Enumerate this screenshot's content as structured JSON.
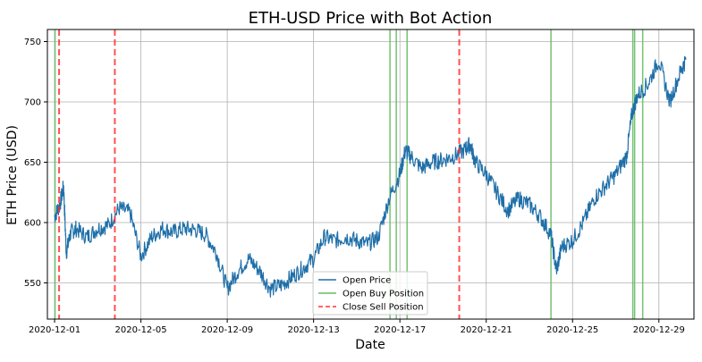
{
  "chart_data": {
    "type": "line",
    "title": "ETH-USD Price with Bot Action",
    "xlabel": "Date",
    "ylabel": "ETH Price (USD)",
    "x_tick_labels": [
      "2020-12-01",
      "2020-12-05",
      "2020-12-09",
      "2020-12-13",
      "2020-12-17",
      "2020-12-21",
      "2020-12-25",
      "2020-12-29"
    ],
    "y_ticks": [
      550,
      600,
      650,
      700,
      750
    ],
    "xlim": [
      "2020-11-30T16:00",
      "2020-12-30T15:00"
    ],
    "ylim": [
      520,
      760
    ],
    "grid": true,
    "legend_position": "bottom-center",
    "series": [
      {
        "name": "Open Price",
        "color": "#1f6fa8",
        "points": [
          [
            "2020-12-01T00:00",
            605
          ],
          [
            "2020-12-01T06:00",
            615
          ],
          [
            "2020-12-01T10:00",
            630
          ],
          [
            "2020-12-01T13:00",
            575
          ],
          [
            "2020-12-01T18:00",
            592
          ],
          [
            "2020-12-02T00:00",
            595
          ],
          [
            "2020-12-02T12:00",
            588
          ],
          [
            "2020-12-03T00:00",
            595
          ],
          [
            "2020-12-03T12:00",
            598
          ],
          [
            "2020-12-04T00:00",
            612
          ],
          [
            "2020-12-04T12:00",
            608
          ],
          [
            "2020-12-05T00:00",
            572
          ],
          [
            "2020-12-05T12:00",
            588
          ],
          [
            "2020-12-06T00:00",
            595
          ],
          [
            "2020-12-06T12:00",
            592
          ],
          [
            "2020-12-07T00:00",
            595
          ],
          [
            "2020-12-07T12:00",
            594
          ],
          [
            "2020-12-08T00:00",
            590
          ],
          [
            "2020-12-08T12:00",
            575
          ],
          [
            "2020-12-09T00:00",
            545
          ],
          [
            "2020-12-09T12:00",
            560
          ],
          [
            "2020-12-10T00:00",
            570
          ],
          [
            "2020-12-10T12:00",
            560
          ],
          [
            "2020-12-11T00:00",
            545
          ],
          [
            "2020-12-11T12:00",
            548
          ],
          [
            "2020-12-12T00:00",
            555
          ],
          [
            "2020-12-12T12:00",
            562
          ],
          [
            "2020-12-13T00:00",
            570
          ],
          [
            "2020-12-13T12:00",
            588
          ],
          [
            "2020-12-14T00:00",
            585
          ],
          [
            "2020-12-14T12:00",
            588
          ],
          [
            "2020-12-15T00:00",
            585
          ],
          [
            "2020-12-15T12:00",
            582
          ],
          [
            "2020-12-16T00:00",
            588
          ],
          [
            "2020-12-16T12:00",
            620
          ],
          [
            "2020-12-17T00:00",
            640
          ],
          [
            "2020-12-17T06:00",
            660
          ],
          [
            "2020-12-17T12:00",
            655
          ],
          [
            "2020-12-18T00:00",
            645
          ],
          [
            "2020-12-18T12:00",
            650
          ],
          [
            "2020-12-19T00:00",
            652
          ],
          [
            "2020-12-19T12:00",
            655
          ],
          [
            "2020-12-20T00:00",
            660
          ],
          [
            "2020-12-20T06:00",
            665
          ],
          [
            "2020-12-20T12:00",
            650
          ],
          [
            "2020-12-21T00:00",
            640
          ],
          [
            "2020-12-21T12:00",
            625
          ],
          [
            "2020-12-22T00:00",
            610
          ],
          [
            "2020-12-22T12:00",
            620
          ],
          [
            "2020-12-23T00:00",
            615
          ],
          [
            "2020-12-23T12:00",
            605
          ],
          [
            "2020-12-24T00:00",
            590
          ],
          [
            "2020-12-24T06:00",
            560
          ],
          [
            "2020-12-24T12:00",
            580
          ],
          [
            "2020-12-25T00:00",
            585
          ],
          [
            "2020-12-25T12:00",
            600
          ],
          [
            "2020-12-26T00:00",
            620
          ],
          [
            "2020-12-26T12:00",
            630
          ],
          [
            "2020-12-27T00:00",
            640
          ],
          [
            "2020-12-27T12:00",
            655
          ],
          [
            "2020-12-27T18:00",
            690
          ],
          [
            "2020-12-28T00:00",
            705
          ],
          [
            "2020-12-28T12:00",
            715
          ],
          [
            "2020-12-29T00:00",
            735
          ],
          [
            "2020-12-29T12:00",
            700
          ],
          [
            "2020-12-30T00:00",
            725
          ],
          [
            "2020-12-30T06:00",
            735
          ]
        ]
      },
      {
        "name": "Open Buy Position",
        "color": "#66bb66",
        "type": "vlines",
        "x": [
          "2020-12-01T00:30",
          "2020-12-16T13:00",
          "2020-12-16T20:00",
          "2020-12-17T08:00",
          "2020-12-24T00:00",
          "2020-12-27T19:00",
          "2020-12-27T21:00",
          "2020-12-28T06:00"
        ]
      },
      {
        "name": "Close Sell Position",
        "color": "#ff3333",
        "type": "vlines",
        "x": [
          "2020-12-01T05:00",
          "2020-12-03T19:00",
          "2020-12-19T18:00"
        ]
      }
    ]
  }
}
